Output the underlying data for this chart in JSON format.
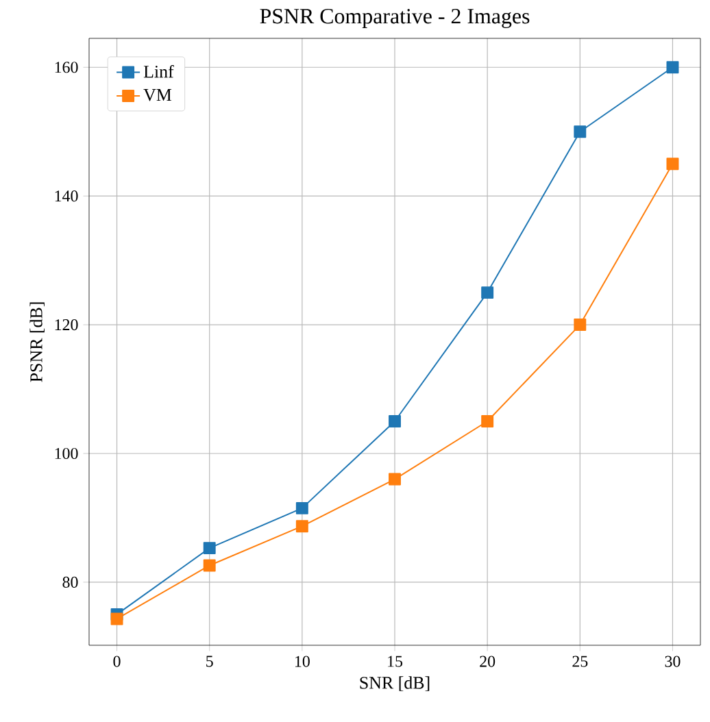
{
  "chart_data": {
    "type": "line",
    "title": "PSNR Comparative - 2 Images",
    "xlabel": "SNR [dB]",
    "ylabel": "PSNR [dB]",
    "x": [
      0,
      5,
      10,
      15,
      20,
      25,
      30
    ],
    "series": [
      {
        "name": "Linf",
        "color": "#1f77b4",
        "values": [
          75,
          85.3,
          91.5,
          105,
          125,
          150,
          160
        ]
      },
      {
        "name": "VM",
        "color": "#ff7f0e",
        "values": [
          74.3,
          82.6,
          88.7,
          96,
          105,
          120,
          145
        ]
      }
    ],
    "xlim": [
      -1.5,
      31.5
    ],
    "ylim": [
      70.2,
      164.5
    ],
    "xticks": [
      0,
      5,
      10,
      15,
      20,
      25,
      30
    ],
    "yticks": [
      80,
      100,
      120,
      140,
      160
    ],
    "grid": true,
    "legend": "top left",
    "marker": "square",
    "line_style": "solid"
  }
}
